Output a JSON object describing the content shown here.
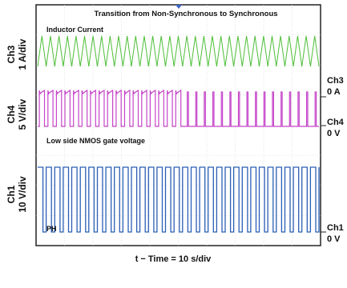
{
  "chart_data": {
    "type": "line",
    "title": "Transition from Non-Synchronous to Synchronous",
    "xlabel": "t − Time = 10   s/div",
    "grid": true,
    "divisions": {
      "x": 10,
      "y": 8
    },
    "colors": {
      "ch3": "#4fbf3a",
      "ch4": "#c545c9",
      "ch1": "#2a5fb5",
      "grid": "#cfd3d8",
      "frame": "#222222",
      "trigger": "#3a63c8"
    },
    "channels": [
      {
        "name": "Ch3",
        "scale": "1 A/div",
        "annotation": "Inductor Current",
        "ground_label": [
          "Ch3",
          "0 A"
        ],
        "waveform": "triangle",
        "cycles": 33
      },
      {
        "name": "Ch4",
        "scale": "5 V/div",
        "annotation": "Low side NMOS gate voltage",
        "ground_label": [
          "Ch4",
          "0 V"
        ],
        "waveform": "pulse",
        "cycles": 33,
        "transition_at_div": 4.9
      },
      {
        "name": "Ch1",
        "scale": "10 V/div",
        "annotation": "PH",
        "ground_label": [
          "Ch1",
          "0 V"
        ],
        "waveform": "square",
        "cycles": 33
      }
    ]
  }
}
